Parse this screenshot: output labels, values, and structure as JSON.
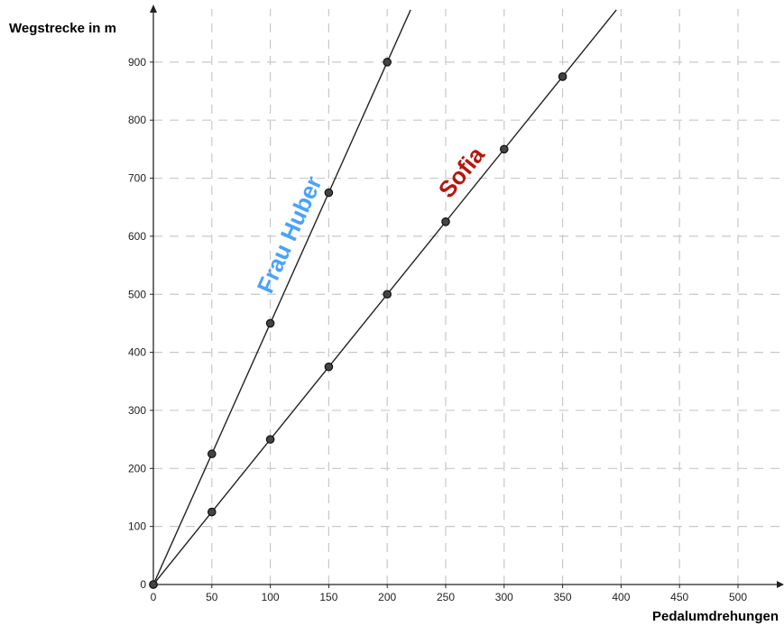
{
  "chart_data": {
    "type": "line",
    "xlabel": "Pedalumdrehungen",
    "ylabel": "Wegstrecke in m",
    "xlim": [
      0,
      540
    ],
    "ylim": [
      0,
      990
    ],
    "x_ticks": [
      0,
      50,
      100,
      150,
      200,
      250,
      300,
      350,
      400,
      450,
      500
    ],
    "y_ticks": [
      0,
      100,
      200,
      300,
      400,
      500,
      600,
      700,
      800,
      900
    ],
    "grid": true,
    "series": [
      {
        "name": "Frau Huber",
        "color": "#4aa3f7",
        "line_end": [
          220,
          990
        ],
        "points": [
          [
            0,
            0
          ],
          [
            50,
            225
          ],
          [
            100,
            450
          ],
          [
            150,
            675
          ],
          [
            200,
            900
          ]
        ]
      },
      {
        "name": "Sofia",
        "color": "#b3170f",
        "line_end": [
          396,
          990
        ],
        "points": [
          [
            0,
            0
          ],
          [
            50,
            125
          ],
          [
            100,
            250
          ],
          [
            150,
            375
          ],
          [
            200,
            500
          ],
          [
            250,
            625
          ],
          [
            300,
            750
          ],
          [
            350,
            875
          ]
        ]
      }
    ]
  }
}
